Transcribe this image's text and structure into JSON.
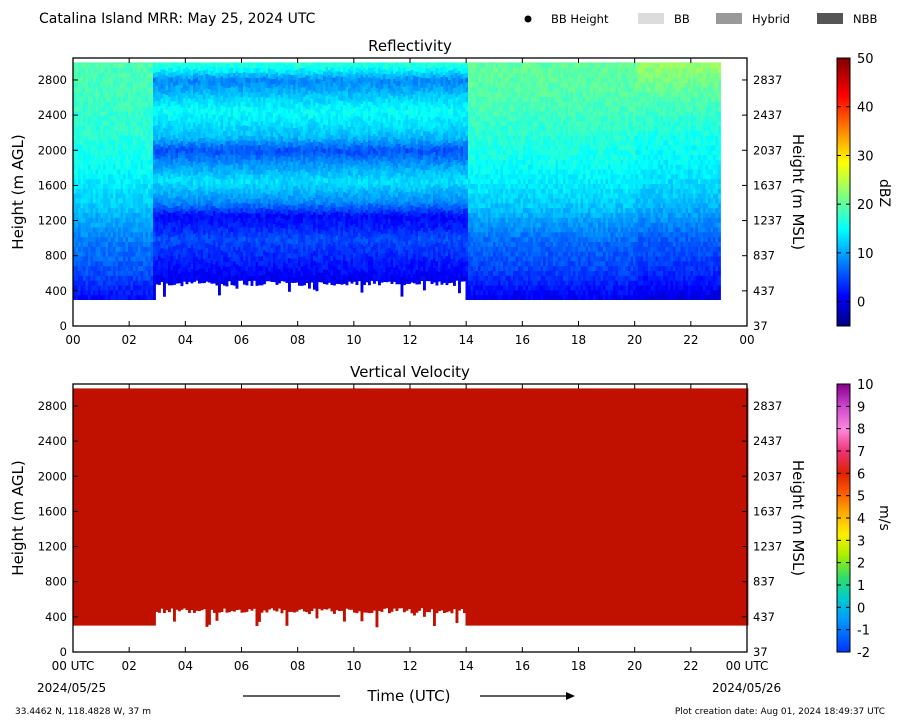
{
  "header": {
    "title": "Catalina Island MRR:  May 25, 2024 UTC",
    "legend": [
      {
        "label": "BB Height",
        "swatch": "dot",
        "color": "#000000"
      },
      {
        "label": "BB",
        "swatch": "box",
        "color": "#dcdcdc"
      },
      {
        "label": "Hybrid",
        "swatch": "box",
        "color": "#999999"
      },
      {
        "label": "NBB",
        "swatch": "box",
        "color": "#555555"
      }
    ]
  },
  "chart_data": [
    {
      "type": "heatmap",
      "title": "Reflectivity",
      "ylabel": "Height (m AGL)",
      "y2label": "Height (m MSL)",
      "x_ticks": [
        "00",
        "02",
        "04",
        "06",
        "08",
        "10",
        "12",
        "14",
        "16",
        "18",
        "20",
        "22",
        "00"
      ],
      "x_range_hours": [
        0,
        24
      ],
      "ylim": [
        0,
        3050
      ],
      "y_ticks": [
        0,
        400,
        800,
        1200,
        1600,
        2000,
        2400,
        2800
      ],
      "y2_ticks": [
        "37",
        "437",
        "837",
        "1237",
        "1637",
        "2037",
        "2437",
        "2837"
      ],
      "data_top_m": 3000,
      "colorbar": {
        "label": "dBZ",
        "min": -5,
        "max": 50,
        "ticks": [
          "0",
          "10",
          "20",
          "30",
          "40",
          "50"
        ]
      },
      "echo_base_m": [
        {
          "from_h": 0,
          "to_h": 2.9,
          "base": 300
        },
        {
          "from_h": 2.9,
          "to_h": 13.9,
          "base": 520
        },
        {
          "from_h": 13.9,
          "to_h": 24,
          "base": 300
        }
      ],
      "gaps_hours": [
        [
          23.0,
          23.3
        ]
      ],
      "layers_dbz": [
        {
          "from_h": 0,
          "to_h": 2.8,
          "profile": [
            [
              300,
              2
            ],
            [
              600,
              6
            ],
            [
              1000,
              9
            ],
            [
              1400,
              13
            ],
            [
              1800,
              16
            ],
            [
              2200,
              18
            ],
            [
              2600,
              19
            ],
            [
              3000,
              20
            ]
          ]
        },
        {
          "from_h": 2.8,
          "to_h": 14,
          "profile": [
            [
              300,
              0
            ],
            [
              520,
              1
            ],
            [
              800,
              4
            ],
            [
              1000,
              6
            ],
            [
              1100,
              4
            ],
            [
              1250,
              2
            ],
            [
              1400,
              9
            ],
            [
              1650,
              14
            ],
            [
              1850,
              10
            ],
            [
              2000,
              6
            ],
            [
              2150,
              12
            ],
            [
              2450,
              16
            ],
            [
              2600,
              13
            ],
            [
              2800,
              9
            ],
            [
              2950,
              17
            ],
            [
              3000,
              18
            ]
          ]
        },
        {
          "from_h": 14,
          "to_h": 20,
          "profile": [
            [
              300,
              1
            ],
            [
              600,
              5
            ],
            [
              1000,
              8
            ],
            [
              1400,
              13
            ],
            [
              1800,
              16
            ],
            [
              2200,
              18
            ],
            [
              2600,
              20
            ],
            [
              3000,
              21
            ]
          ]
        },
        {
          "from_h": 20,
          "to_h": 23,
          "profile": [
            [
              300,
              0
            ],
            [
              600,
              4
            ],
            [
              1000,
              7
            ],
            [
              1400,
              12
            ],
            [
              1800,
              15
            ],
            [
              2200,
              17
            ],
            [
              2600,
              20
            ],
            [
              3000,
              24
            ]
          ]
        }
      ]
    },
    {
      "type": "heatmap",
      "title": "Vertical Velocity",
      "ylabel": "Height (m AGL)",
      "y2label": "Height (m MSL)",
      "x_ticks": [
        "00 UTC",
        "02",
        "04",
        "06",
        "08",
        "10",
        "12",
        "14",
        "16",
        "18",
        "20",
        "22",
        "00 UTC"
      ],
      "x_range_hours": [
        0,
        24
      ],
      "ylim": [
        0,
        3050
      ],
      "y_ticks": [
        0,
        400,
        800,
        1200,
        1600,
        2000,
        2400,
        2800
      ],
      "y2_ticks": [
        "37",
        "437",
        "837",
        "1237",
        "1637",
        "2037",
        "2437",
        "2837"
      ],
      "data_top_m": 3000,
      "fill_value_ms": 6,
      "colorbar": {
        "label": "m/s",
        "min": -2,
        "max": 10,
        "ticks": [
          "-2",
          "-1",
          "0",
          "1",
          "2",
          "3",
          "4",
          "5",
          "6",
          "7",
          "8",
          "9",
          "10"
        ]
      },
      "echo_base_m": [
        {
          "from_h": 0,
          "to_h": 2.9,
          "base": 300
        },
        {
          "from_h": 2.9,
          "to_h": 13.9,
          "base": 500
        },
        {
          "from_h": 13.9,
          "to_h": 24,
          "base": 300
        }
      ]
    }
  ],
  "x_axis": {
    "label": "Time (UTC)",
    "start_date": "2024/05/25",
    "end_date": "2024/05/26"
  },
  "footer": {
    "location": "33.4462 N, 118.4828 W, 37 m",
    "created": "Plot creation date: Aug 01, 2024 18:49:37 UTC"
  }
}
